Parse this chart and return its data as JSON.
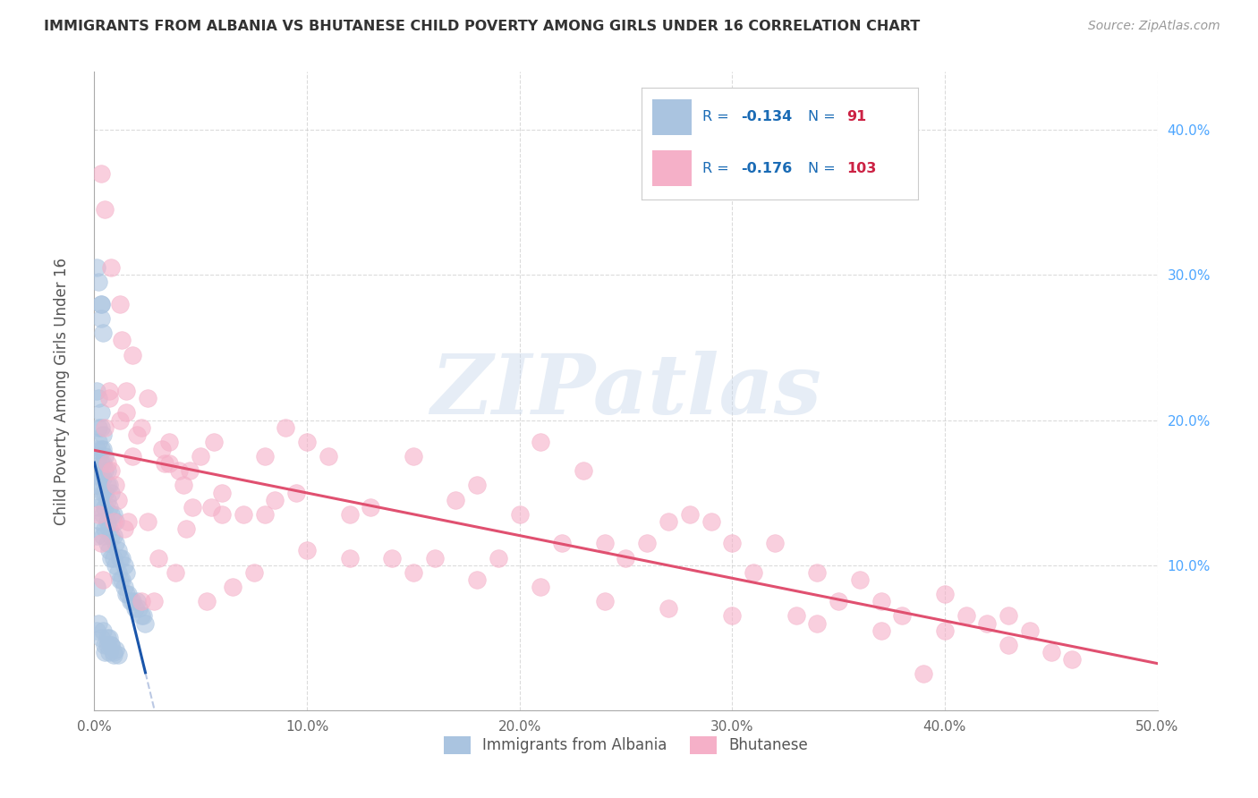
{
  "title": "IMMIGRANTS FROM ALBANIA VS BHUTANESE CHILD POVERTY AMONG GIRLS UNDER 16 CORRELATION CHART",
  "source": "Source: ZipAtlas.com",
  "ylabel": "Child Poverty Among Girls Under 16",
  "xlim": [
    0.0,
    0.5
  ],
  "ylim": [
    0.0,
    0.44
  ],
  "xticks": [
    0.0,
    0.1,
    0.2,
    0.3,
    0.4,
    0.5
  ],
  "xticklabels": [
    "0.0%",
    "10.0%",
    "20.0%",
    "30.0%",
    "40.0%",
    "50.0%"
  ],
  "yticks_right": [
    0.1,
    0.2,
    0.3,
    0.4
  ],
  "yticklabels_right": [
    "10.0%",
    "20.0%",
    "30.0%",
    "40.0%"
  ],
  "albania_color": "#aac4e0",
  "bhutanese_color": "#f5b0c8",
  "albania_R": -0.134,
  "albania_N": 91,
  "bhutanese_R": -0.176,
  "bhutanese_N": 103,
  "legend_label_color": "#1a6bb5",
  "legend_value_color": "#cc2244",
  "albania_line_color": "#1a55aa",
  "albania_line_dash_color": "#aabbdd",
  "bhutanese_line_color": "#e05070",
  "watermark": "ZIPatlas",
  "watermark_color_zip": "#b8cce4",
  "watermark_color_atlas": "#d0b0c0",
  "albania_scatter_x": [
    0.001,
    0.001,
    0.001,
    0.001,
    0.001,
    0.002,
    0.002,
    0.002,
    0.002,
    0.002,
    0.002,
    0.002,
    0.003,
    0.003,
    0.003,
    0.003,
    0.003,
    0.003,
    0.003,
    0.003,
    0.004,
    0.004,
    0.004,
    0.004,
    0.004,
    0.004,
    0.004,
    0.005,
    0.005,
    0.005,
    0.005,
    0.005,
    0.006,
    0.006,
    0.006,
    0.006,
    0.006,
    0.007,
    0.007,
    0.007,
    0.007,
    0.008,
    0.008,
    0.008,
    0.008,
    0.009,
    0.009,
    0.009,
    0.01,
    0.01,
    0.01,
    0.011,
    0.011,
    0.012,
    0.012,
    0.013,
    0.013,
    0.014,
    0.014,
    0.015,
    0.015,
    0.016,
    0.017,
    0.018,
    0.019,
    0.02,
    0.021,
    0.022,
    0.023,
    0.024,
    0.001,
    0.002,
    0.003,
    0.003,
    0.004,
    0.005,
    0.006,
    0.007,
    0.008,
    0.009,
    0.001,
    0.002,
    0.003,
    0.004,
    0.005,
    0.006,
    0.007,
    0.008,
    0.009,
    0.01,
    0.011
  ],
  "albania_scatter_y": [
    0.085,
    0.12,
    0.155,
    0.18,
    0.22,
    0.14,
    0.155,
    0.165,
    0.175,
    0.185,
    0.195,
    0.215,
    0.13,
    0.145,
    0.16,
    0.17,
    0.18,
    0.195,
    0.205,
    0.28,
    0.12,
    0.135,
    0.15,
    0.16,
    0.17,
    0.18,
    0.19,
    0.125,
    0.14,
    0.15,
    0.165,
    0.175,
    0.115,
    0.13,
    0.145,
    0.155,
    0.165,
    0.11,
    0.125,
    0.14,
    0.155,
    0.105,
    0.12,
    0.135,
    0.15,
    0.105,
    0.12,
    0.135,
    0.1,
    0.115,
    0.13,
    0.095,
    0.11,
    0.09,
    0.105,
    0.09,
    0.105,
    0.085,
    0.1,
    0.08,
    0.095,
    0.08,
    0.075,
    0.075,
    0.07,
    0.075,
    0.07,
    0.065,
    0.065,
    0.06,
    0.305,
    0.295,
    0.28,
    0.27,
    0.26,
    0.04,
    0.045,
    0.05,
    0.045,
    0.04,
    0.055,
    0.06,
    0.05,
    0.055,
    0.045,
    0.05,
    0.04,
    0.045,
    0.038,
    0.042,
    0.038
  ],
  "bhutanese_scatter_x": [
    0.002,
    0.003,
    0.004,
    0.005,
    0.006,
    0.007,
    0.008,
    0.009,
    0.01,
    0.011,
    0.012,
    0.013,
    0.014,
    0.015,
    0.016,
    0.018,
    0.02,
    0.022,
    0.025,
    0.028,
    0.03,
    0.033,
    0.035,
    0.038,
    0.04,
    0.043,
    0.046,
    0.05,
    0.053,
    0.056,
    0.06,
    0.065,
    0.07,
    0.075,
    0.08,
    0.085,
    0.09,
    0.095,
    0.1,
    0.11,
    0.12,
    0.13,
    0.14,
    0.15,
    0.16,
    0.17,
    0.18,
    0.19,
    0.2,
    0.21,
    0.22,
    0.23,
    0.24,
    0.25,
    0.26,
    0.27,
    0.28,
    0.29,
    0.3,
    0.31,
    0.32,
    0.33,
    0.34,
    0.35,
    0.36,
    0.37,
    0.38,
    0.39,
    0.4,
    0.41,
    0.42,
    0.43,
    0.44,
    0.45,
    0.46,
    0.003,
    0.005,
    0.008,
    0.012,
    0.018,
    0.025,
    0.035,
    0.045,
    0.06,
    0.08,
    0.1,
    0.12,
    0.15,
    0.18,
    0.21,
    0.24,
    0.27,
    0.3,
    0.34,
    0.37,
    0.4,
    0.43,
    0.007,
    0.015,
    0.022,
    0.032,
    0.042,
    0.055
  ],
  "bhutanese_scatter_y": [
    0.135,
    0.115,
    0.09,
    0.195,
    0.17,
    0.215,
    0.165,
    0.13,
    0.155,
    0.145,
    0.2,
    0.255,
    0.125,
    0.22,
    0.13,
    0.175,
    0.19,
    0.075,
    0.13,
    0.075,
    0.105,
    0.17,
    0.17,
    0.095,
    0.165,
    0.125,
    0.14,
    0.175,
    0.075,
    0.185,
    0.135,
    0.085,
    0.135,
    0.095,
    0.175,
    0.145,
    0.195,
    0.15,
    0.185,
    0.175,
    0.135,
    0.14,
    0.105,
    0.175,
    0.105,
    0.145,
    0.155,
    0.105,
    0.135,
    0.185,
    0.115,
    0.165,
    0.115,
    0.105,
    0.115,
    0.13,
    0.135,
    0.13,
    0.115,
    0.095,
    0.115,
    0.065,
    0.095,
    0.075,
    0.09,
    0.075,
    0.065,
    0.025,
    0.08,
    0.065,
    0.06,
    0.065,
    0.055,
    0.04,
    0.035,
    0.37,
    0.345,
    0.305,
    0.28,
    0.245,
    0.215,
    0.185,
    0.165,
    0.15,
    0.135,
    0.11,
    0.105,
    0.095,
    0.09,
    0.085,
    0.075,
    0.07,
    0.065,
    0.06,
    0.055,
    0.055,
    0.045,
    0.22,
    0.205,
    0.195,
    0.18,
    0.155,
    0.14
  ]
}
